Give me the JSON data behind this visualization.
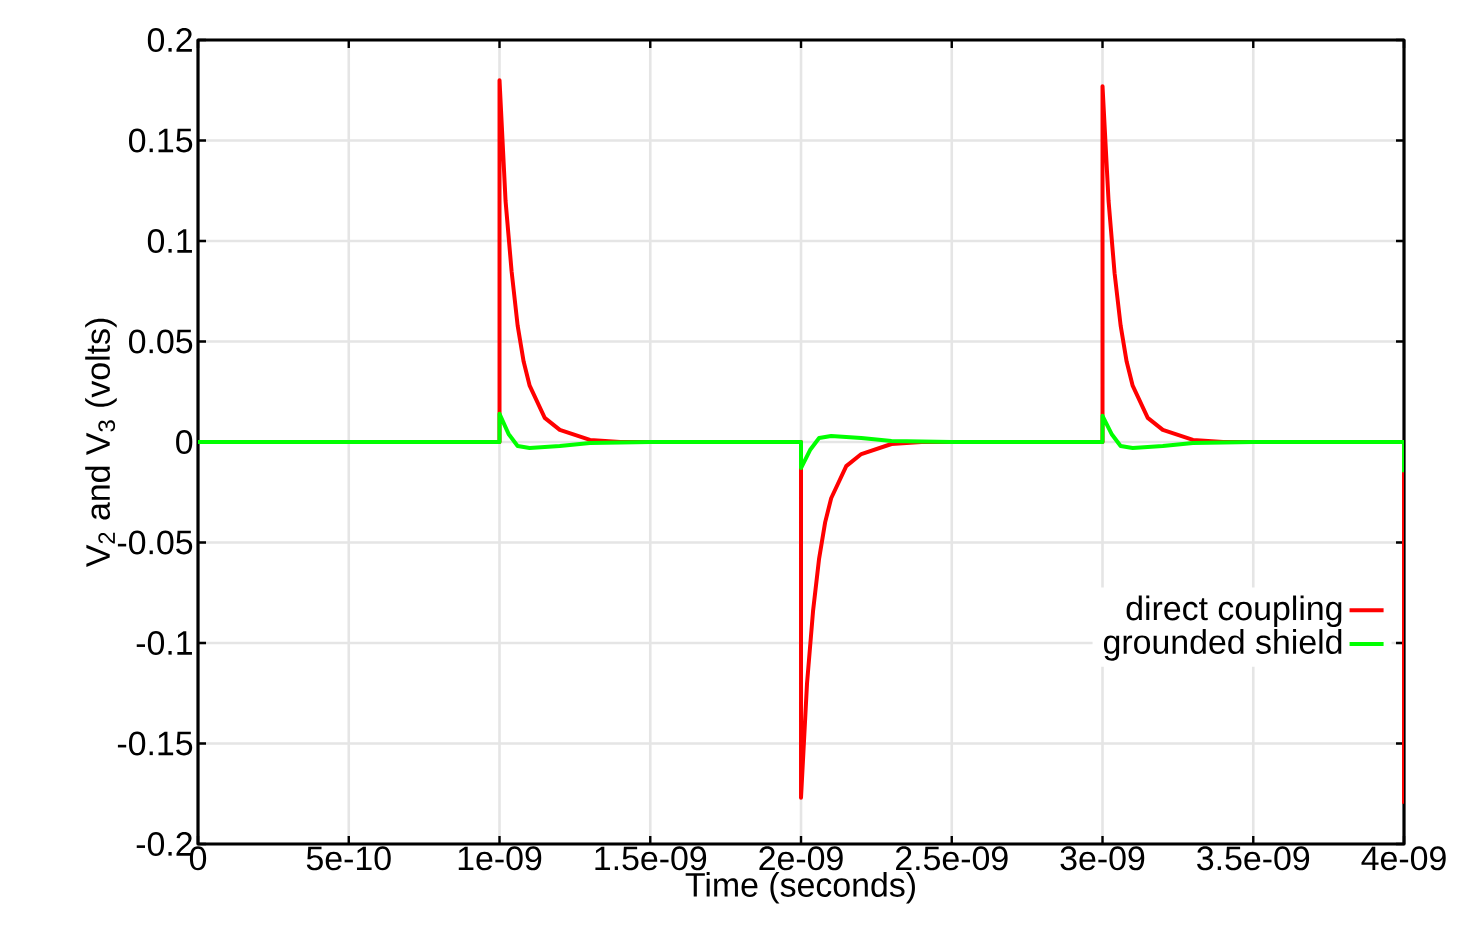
{
  "chart_data": {
    "type": "line",
    "xlabel": "Time (seconds)",
    "ylabel": "V$_{2}$ and V$_{3}$ (volts)",
    "xlim": [
      0,
      4e-09
    ],
    "ylim": [
      -0.2,
      0.2
    ],
    "xticks": [
      0,
      {
        "value": 5e-10,
        "label": "5e-10"
      },
      {
        "value": 1e-09,
        "label": "1e-09"
      },
      {
        "value": 1.5e-09,
        "label": "1.5e-09"
      },
      {
        "value": 2e-09,
        "label": "2e-09"
      },
      {
        "value": 2.5e-09,
        "label": "2.5e-09"
      },
      {
        "value": 3e-09,
        "label": "3e-09"
      },
      {
        "value": 3.5e-09,
        "label": "3.5e-09"
      },
      {
        "value": 4e-09,
        "label": "4e-09"
      }
    ],
    "yticks": [
      -0.2,
      -0.15,
      -0.1,
      -0.05,
      0,
      0.05,
      0.1,
      0.15,
      0.2
    ],
    "grid": true,
    "legend": "bottom right",
    "line_style": "solid",
    "marker": "none",
    "series": [
      {
        "name": "direct coupling",
        "color": "#ff0000",
        "x": [
          0,
          1e-09,
          1e-09,
          1.02e-09,
          1.04e-09,
          1.06e-09,
          1.08e-09,
          1.1e-09,
          1.15e-09,
          1.2e-09,
          1.3e-09,
          1.4e-09,
          2e-09,
          2e-09,
          2.02e-09,
          2.04e-09,
          2.06e-09,
          2.08e-09,
          2.1e-09,
          2.15e-09,
          2.2e-09,
          2.3e-09,
          2.4e-09,
          3e-09,
          3e-09,
          3.02e-09,
          3.04e-09,
          3.06e-09,
          3.08e-09,
          3.1e-09,
          3.15e-09,
          3.2e-09,
          3.3e-09,
          3.4e-09,
          4e-09,
          4e-09
        ],
        "values": [
          0,
          0,
          0.18,
          0.12,
          0.085,
          0.058,
          0.04,
          0.028,
          0.012,
          0.006,
          0.001,
          0,
          0,
          -0.177,
          -0.12,
          -0.084,
          -0.058,
          -0.04,
          -0.028,
          -0.012,
          -0.006,
          -0.001,
          0,
          0,
          0.177,
          0.12,
          0.084,
          0.058,
          0.04,
          0.028,
          0.012,
          0.006,
          0.001,
          0,
          0,
          -0.18
        ]
      },
      {
        "name": "grounded shield",
        "color": "#00ff00",
        "x": [
          0,
          1e-09,
          1e-09,
          1.03e-09,
          1.06e-09,
          1.1e-09,
          1.2e-09,
          1.3e-09,
          1.5e-09,
          2e-09,
          2e-09,
          2.03e-09,
          2.06e-09,
          2.1e-09,
          2.2e-09,
          2.3e-09,
          2.5e-09,
          3e-09,
          3e-09,
          3.03e-09,
          3.06e-09,
          3.1e-09,
          3.2e-09,
          3.3e-09,
          3.5e-09,
          4e-09,
          4e-09
        ],
        "values": [
          0,
          0,
          0.014,
          0.004,
          -0.002,
          -0.003,
          -0.002,
          -0.0005,
          0,
          0,
          -0.013,
          -0.004,
          0.002,
          0.003,
          0.002,
          0.0005,
          0,
          0,
          0.013,
          0.004,
          -0.002,
          -0.003,
          -0.002,
          -0.0005,
          0,
          0,
          -0.015
        ]
      }
    ]
  }
}
